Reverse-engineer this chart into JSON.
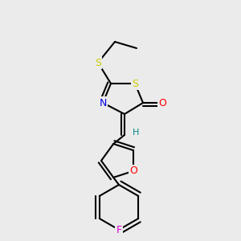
{
  "bg_color": "#ebebeb",
  "bond_color": "#000000",
  "bond_width": 1.5,
  "figure_size": [
    3.0,
    3.0
  ],
  "dpi": 100,
  "colors": {
    "S": "#cccc00",
    "N": "#0000ee",
    "O": "#ff0000",
    "F": "#dd00dd",
    "H": "#008888",
    "C": "#000000"
  }
}
